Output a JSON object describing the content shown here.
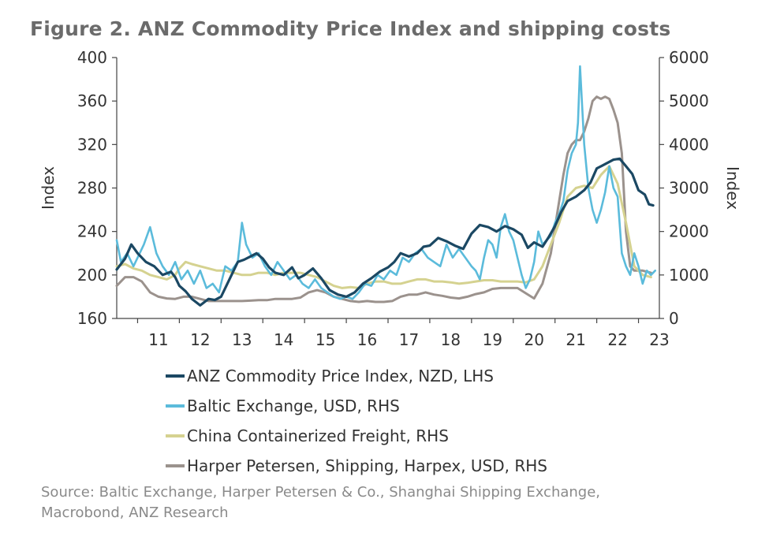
{
  "figure": {
    "title": "Figure 2.  ANZ Commodity Price Index and shipping costs",
    "source_lines": [
      "Source: Baltic Exchange, Harper Petersen & Co., Shanghai Shipping Exchange,",
      "Macrobond, ANZ Research"
    ]
  },
  "chart_data": {
    "type": "line",
    "title": "Figure 2.  ANZ Commodity Price Index and shipping costs",
    "xlabel": "",
    "x_tick_labels": [
      "11",
      "12",
      "13",
      "14",
      "15",
      "16",
      "17",
      "18",
      "19",
      "20",
      "21",
      "22",
      "23"
    ],
    "x_tick_years": [
      2011,
      2012,
      2013,
      2014,
      2015,
      2016,
      2017,
      2018,
      2019,
      2020,
      2021,
      2022,
      2023
    ],
    "xlim": [
      2010.5,
      2023.5
    ],
    "y_left": {
      "label": "Index",
      "min": 160,
      "max": 400,
      "ticks": [
        160,
        200,
        240,
        280,
        320,
        360,
        400
      ]
    },
    "y_right": {
      "label": "Index",
      "min": 0,
      "max": 6000,
      "ticks": [
        0,
        1000,
        2000,
        3000,
        4000,
        5000,
        6000
      ]
    },
    "grid": false,
    "legend_position": "bottom",
    "series": [
      {
        "name": "ANZ Commodity Price Index, NZD, LHS",
        "axis": "left",
        "color": "#1b4863",
        "x": [
          2010.5,
          2010.7,
          2010.85,
          2011.0,
          2011.2,
          2011.4,
          2011.6,
          2011.8,
          2011.9,
          2012.0,
          2012.15,
          2012.3,
          2012.5,
          2012.7,
          2012.85,
          2013.0,
          2013.2,
          2013.4,
          2013.55,
          2013.7,
          2013.85,
          2014.0,
          2014.15,
          2014.3,
          2014.5,
          2014.7,
          2014.85,
          2015.0,
          2015.2,
          2015.4,
          2015.6,
          2015.8,
          2016.0,
          2016.2,
          2016.4,
          2016.6,
          2016.8,
          2017.0,
          2017.15,
          2017.3,
          2017.5,
          2017.7,
          2017.85,
          2018.0,
          2018.2,
          2018.4,
          2018.6,
          2018.8,
          2019.0,
          2019.2,
          2019.4,
          2019.6,
          2019.8,
          2020.0,
          2020.2,
          2020.35,
          2020.5,
          2020.7,
          2020.85,
          2021.0,
          2021.15,
          2021.3,
          2021.5,
          2021.7,
          2021.85,
          2022.0,
          2022.2,
          2022.4,
          2022.55,
          2022.7,
          2022.85,
          2023.0,
          2023.15,
          2023.25,
          2023.35
        ],
        "values": [
          205,
          215,
          228,
          220,
          212,
          208,
          200,
          203,
          198,
          190,
          185,
          178,
          172,
          178,
          177,
          180,
          196,
          212,
          214,
          217,
          220,
          215,
          207,
          202,
          200,
          207,
          197,
          200,
          206,
          197,
          186,
          182,
          180,
          184,
          192,
          197,
          203,
          207,
          212,
          220,
          217,
          220,
          226,
          227,
          234,
          231,
          227,
          224,
          238,
          246,
          244,
          240,
          245,
          242,
          237,
          225,
          230,
          226,
          235,
          245,
          258,
          268,
          272,
          278,
          285,
          298,
          302,
          306,
          307,
          300,
          293,
          278,
          274,
          265,
          264
        ]
      },
      {
        "name": "Baltic Exchange, USD, RHS",
        "axis": "right",
        "color": "#5bbbdb",
        "x": [
          2010.5,
          2010.6,
          2010.75,
          2010.9,
          2011.0,
          2011.15,
          2011.3,
          2011.45,
          2011.6,
          2011.75,
          2011.9,
          2012.05,
          2012.2,
          2012.35,
          2012.5,
          2012.65,
          2012.8,
          2012.95,
          2013.1,
          2013.25,
          2013.4,
          2013.5,
          2013.6,
          2013.75,
          2013.9,
          2014.05,
          2014.2,
          2014.35,
          2014.5,
          2014.65,
          2014.8,
          2014.95,
          2015.1,
          2015.25,
          2015.4,
          2015.55,
          2015.7,
          2015.85,
          2016.0,
          2016.15,
          2016.3,
          2016.45,
          2016.6,
          2016.75,
          2016.9,
          2017.05,
          2017.2,
          2017.35,
          2017.5,
          2017.65,
          2017.8,
          2017.95,
          2018.1,
          2018.25,
          2018.4,
          2018.55,
          2018.7,
          2018.85,
          2019.0,
          2019.1,
          2019.2,
          2019.3,
          2019.4,
          2019.5,
          2019.6,
          2019.7,
          2019.8,
          2019.9,
          2020.0,
          2020.1,
          2020.2,
          2020.3,
          2020.4,
          2020.5,
          2020.6,
          2020.7,
          2020.8,
          2020.9,
          2021.0,
          2021.1,
          2021.2,
          2021.3,
          2021.4,
          2021.5,
          2021.55,
          2021.6,
          2021.7,
          2021.8,
          2021.9,
          2022.0,
          2022.1,
          2022.2,
          2022.3,
          2022.4,
          2022.5,
          2022.6,
          2022.7,
          2022.8,
          2022.9,
          2023.0,
          2023.1,
          2023.2,
          2023.3,
          2023.4
        ],
        "values": [
          1800,
          1300,
          1500,
          1200,
          1400,
          1700,
          2100,
          1500,
          1200,
          1000,
          1300,
          900,
          1100,
          800,
          1100,
          700,
          800,
          600,
          1200,
          1100,
          1300,
          2200,
          1700,
          1400,
          1500,
          1200,
          1000,
          1300,
          1100,
          900,
          1000,
          800,
          700,
          900,
          700,
          600,
          500,
          450,
          500,
          450,
          600,
          800,
          750,
          1000,
          900,
          1100,
          1000,
          1400,
          1300,
          1500,
          1600,
          1400,
          1300,
          1200,
          1700,
          1400,
          1600,
          1400,
          1200,
          1100,
          900,
          1400,
          1800,
          1700,
          1400,
          2100,
          2400,
          2000,
          1800,
          1400,
          1000,
          700,
          900,
          1300,
          2000,
          1700,
          1800,
          1900,
          2200,
          2400,
          2700,
          3400,
          3800,
          4000,
          4500,
          5800,
          4000,
          3000,
          2500,
          2200,
          2500,
          2900,
          3500,
          3000,
          2800,
          1500,
          1200,
          1000,
          1500,
          1200,
          800,
          1100,
          1000,
          1100
        ]
      },
      {
        "name": "China Containerized Freight, RHS",
        "axis": "right",
        "color": "#d5d290",
        "x": [
          2010.5,
          2010.7,
          2010.9,
          2011.1,
          2011.3,
          2011.5,
          2011.7,
          2011.9,
          2012.0,
          2012.15,
          2012.3,
          2012.5,
          2012.7,
          2012.9,
          2013.1,
          2013.3,
          2013.5,
          2013.7,
          2013.9,
          2014.1,
          2014.3,
          2014.5,
          2014.7,
          2014.9,
          2015.1,
          2015.3,
          2015.5,
          2015.7,
          2015.9,
          2016.1,
          2016.3,
          2016.5,
          2016.7,
          2016.9,
          2017.1,
          2017.3,
          2017.5,
          2017.7,
          2017.9,
          2018.1,
          2018.3,
          2018.5,
          2018.7,
          2018.9,
          2019.1,
          2019.3,
          2019.5,
          2019.7,
          2019.9,
          2020.1,
          2020.3,
          2020.5,
          2020.7,
          2020.9,
          2021.1,
          2021.3,
          2021.5,
          2021.7,
          2021.9,
          2022.1,
          2022.3,
          2022.5,
          2022.7,
          2022.9,
          2023.1,
          2023.3
        ],
        "values": [
          1200,
          1250,
          1150,
          1100,
          1000,
          950,
          900,
          1000,
          1150,
          1300,
          1250,
          1200,
          1150,
          1100,
          1100,
          1050,
          1000,
          1000,
          1050,
          1050,
          1000,
          1050,
          1050,
          1050,
          1000,
          950,
          850,
          750,
          700,
          720,
          700,
          800,
          850,
          850,
          800,
          800,
          850,
          900,
          900,
          850,
          850,
          830,
          800,
          820,
          850,
          880,
          880,
          850,
          850,
          850,
          830,
          900,
          1200,
          1700,
          2200,
          2800,
          3000,
          3050,
          3000,
          3300,
          3500,
          3100,
          2200,
          1200,
          1000,
          950
        ]
      },
      {
        "name": "Harper Petersen, Shipping, Harpex, USD, RHS",
        "axis": "right",
        "color": "#9b928d",
        "x": [
          2010.5,
          2010.7,
          2010.9,
          2011.1,
          2011.3,
          2011.5,
          2011.7,
          2011.9,
          2012.1,
          2012.3,
          2012.5,
          2012.7,
          2012.9,
          2013.1,
          2013.3,
          2013.5,
          2013.7,
          2013.9,
          2014.1,
          2014.3,
          2014.5,
          2014.7,
          2014.9,
          2015.1,
          2015.3,
          2015.5,
          2015.7,
          2015.9,
          2016.1,
          2016.3,
          2016.5,
          2016.7,
          2016.9,
          2017.1,
          2017.3,
          2017.5,
          2017.7,
          2017.9,
          2018.1,
          2018.3,
          2018.5,
          2018.7,
          2018.9,
          2019.1,
          2019.3,
          2019.5,
          2019.7,
          2019.9,
          2020.1,
          2020.3,
          2020.5,
          2020.7,
          2020.9,
          2021.0,
          2021.1,
          2021.2,
          2021.3,
          2021.4,
          2021.5,
          2021.6,
          2021.7,
          2021.8,
          2021.9,
          2022.0,
          2022.1,
          2022.2,
          2022.3,
          2022.4,
          2022.5,
          2022.6,
          2022.7,
          2022.8,
          2022.9,
          2023.1,
          2023.3
        ],
        "values": [
          750,
          950,
          950,
          850,
          600,
          500,
          460,
          450,
          500,
          500,
          450,
          400,
          400,
          400,
          400,
          400,
          410,
          420,
          420,
          450,
          450,
          450,
          480,
          600,
          650,
          600,
          500,
          450,
          400,
          380,
          400,
          380,
          380,
          400,
          500,
          550,
          550,
          600,
          550,
          520,
          480,
          460,
          500,
          560,
          600,
          680,
          700,
          700,
          700,
          580,
          460,
          800,
          1500,
          2100,
          2700,
          3300,
          3800,
          4000,
          4100,
          4100,
          4300,
          4600,
          5000,
          5100,
          5050,
          5100,
          5050,
          4800,
          4500,
          3800,
          2000,
          1200,
          1100,
          1100,
          1050
        ]
      }
    ]
  }
}
